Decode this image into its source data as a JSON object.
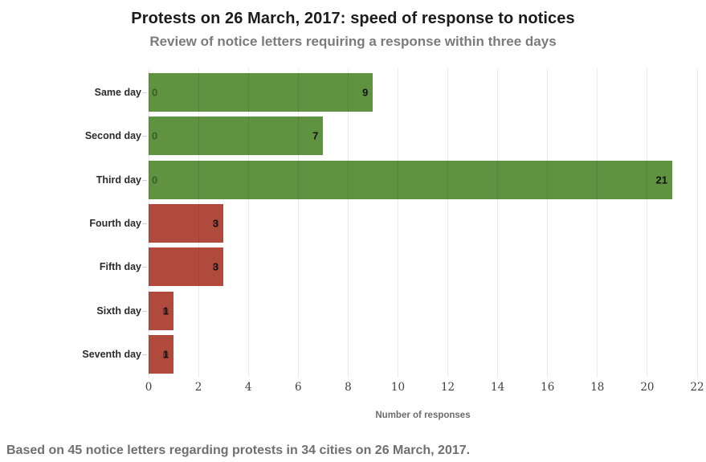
{
  "header": {
    "title": "Protests on 26 March, 2017: speed of response to notices",
    "subtitle": "Review of notice letters requiring a response within three days"
  },
  "chart_data": {
    "type": "bar",
    "orientation": "horizontal",
    "stacked": true,
    "title": "Protests on 26 March, 2017: speed of response to notices",
    "subtitle": "Review of notice letters requiring a response within three days",
    "categories": [
      "Same day",
      "Second day",
      "Third day",
      "Fourth day",
      "Fifth day",
      "Sixth day",
      "Seventh day"
    ],
    "series": [
      {
        "name": "green",
        "color": "#5f9340",
        "values": [
          9,
          7,
          21,
          0,
          0,
          0,
          0
        ]
      },
      {
        "name": "red",
        "color": "#b04a3c",
        "values": [
          0,
          0,
          0,
          3,
          3,
          1,
          1
        ]
      }
    ],
    "totals": [
      9,
      7,
      21,
      3,
      3,
      1,
      1
    ],
    "xlabel": "Number of responses",
    "xticks": [
      0,
      2,
      4,
      6,
      8,
      10,
      12,
      14,
      16,
      18,
      20,
      22
    ],
    "xlim": [
      0,
      22
    ],
    "grid": "vertical",
    "legend": "none",
    "value_labels": "inside-end",
    "footnote": "Based on 45 notice letters regarding protests in 34 cities on 26 March, 2017."
  },
  "rows": [
    {
      "label": "Same day",
      "value": 9,
      "value_label": "9",
      "color": "green",
      "zero_label": "0",
      "zero_position": "start"
    },
    {
      "label": "Second day",
      "value": 7,
      "value_label": "7",
      "color": "green",
      "zero_label": "0",
      "zero_position": "start"
    },
    {
      "label": "Third day",
      "value": 21,
      "value_label": "21",
      "color": "green",
      "zero_label": "0",
      "zero_position": "start"
    },
    {
      "label": "Fourth day",
      "value": 3,
      "value_label": "3",
      "color": "red",
      "zero_label": "0",
      "zero_position": "end"
    },
    {
      "label": "Fifth day",
      "value": 3,
      "value_label": "3",
      "color": "red",
      "zero_label": "0",
      "zero_position": "end"
    },
    {
      "label": "Sixth day",
      "value": 1,
      "value_label": "1",
      "color": "red",
      "zero_label": "0",
      "zero_position": "end"
    },
    {
      "label": "Seventh day",
      "value": 1,
      "value_label": "1",
      "color": "red",
      "zero_label": "0",
      "zero_position": "end"
    }
  ],
  "colors": {
    "green": "#5f9340",
    "red": "#b04a3c",
    "title": "#1c1c1c",
    "subtitle": "#7b7b7b",
    "category_label": "#2b2b2b",
    "tick_label": "#414141",
    "axis_label": "#6c6c6c",
    "footnote": "#6f6f6f",
    "gridline": "rgba(0,0,0,0.08)",
    "value_label": "#111111",
    "zero_label": "rgba(25,25,25,0.45)"
  }
}
